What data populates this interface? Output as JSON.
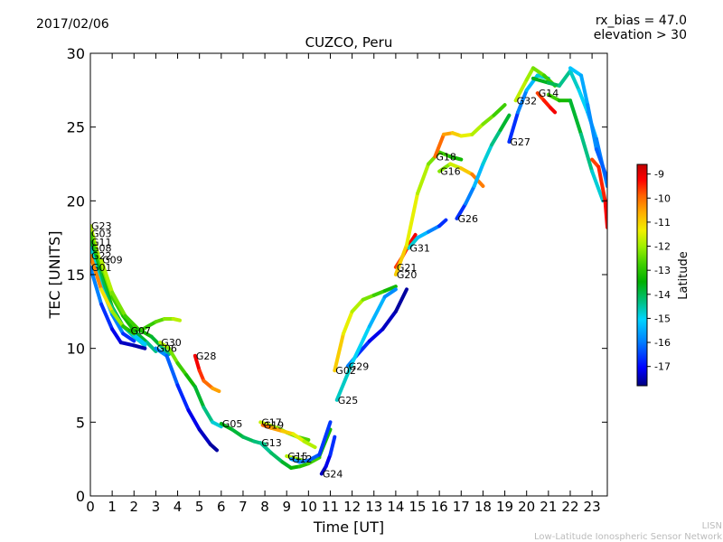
{
  "header": {
    "date": "2017/02/06",
    "title": "CUZCO, Peru",
    "rx_bias": "rx_bias = 47.0",
    "elevation": "elevation > 30"
  },
  "footer": {
    "line1": "LISN",
    "line2": "Low-Latitude Ionospheric Sensor Network"
  },
  "colorbar": {
    "label": "Latitude",
    "ticks": [
      "-9",
      "-10",
      "-11",
      "-12",
      "-13",
      "-14",
      "-15",
      "-16",
      "-17"
    ],
    "colors": [
      "#00007f",
      "#0000ff",
      "#0080ff",
      "#00d4ff",
      "#00c080",
      "#00b000",
      "#40d000",
      "#a0f000",
      "#f0f000",
      "#ffb000",
      "#ff6000",
      "#ff0000",
      "#c00000"
    ]
  },
  "chart_data": {
    "type": "line",
    "title": "CUZCO, Peru",
    "xlabel": "Time [UT]",
    "ylabel": "TEC [UNITS]",
    "xlim": [
      0,
      23.7
    ],
    "ylim": [
      0,
      30
    ],
    "xticks": [
      "0",
      "1",
      "2",
      "3",
      "4",
      "5",
      "6",
      "7",
      "8",
      "9",
      "10",
      "11",
      "12",
      "13",
      "14",
      "15",
      "16",
      "17",
      "18",
      "19",
      "20",
      "21",
      "22",
      "23"
    ],
    "yticks": [
      "0",
      "5",
      "10",
      "15",
      "20",
      "25",
      "30"
    ],
    "color_by": "Latitude",
    "series": [
      {
        "name": "G23",
        "points": [
          [
            0.0,
            18.3
          ],
          [
            0.5,
            15.5
          ],
          [
            1.0,
            13.5
          ],
          [
            1.5,
            12.2
          ],
          [
            2.0,
            11.2
          ],
          [
            2.6,
            10.4
          ],
          [
            3.0,
            9.8
          ]
        ],
        "lat": [
          -12,
          -12.5,
          -13,
          -13.5,
          -14,
          -14.5,
          -15
        ]
      },
      {
        "name": "G03",
        "points": [
          [
            0.0,
            17.8
          ],
          [
            0.5,
            15.0
          ],
          [
            1.0,
            12.8
          ],
          [
            1.5,
            11.5
          ],
          [
            2.0,
            10.8
          ],
          [
            2.5,
            10.2
          ]
        ],
        "lat": [
          -13,
          -13.5,
          -14,
          -14.5,
          -15,
          -15.5
        ]
      },
      {
        "name": "G11",
        "points": [
          [
            0.0,
            17.2
          ],
          [
            0.4,
            15.2
          ],
          [
            0.9,
            13.0
          ],
          [
            1.4,
            11.6
          ],
          [
            2.0,
            10.9
          ],
          [
            2.5,
            10.3
          ]
        ],
        "lat": [
          -14,
          -14.3,
          -14.6,
          -15,
          -15.4,
          -15.8
        ]
      },
      {
        "name": "G08",
        "points": [
          [
            0.0,
            16.8
          ],
          [
            0.5,
            14.2
          ],
          [
            1.0,
            12.3
          ],
          [
            1.5,
            11.0
          ],
          [
            2.0,
            10.5
          ]
        ],
        "lat": [
          -15,
          -15.5,
          -16,
          -16.5,
          -17
        ]
      },
      {
        "name": "G09",
        "points": [
          [
            0.5,
            16.0
          ],
          [
            1.0,
            13.8
          ],
          [
            1.6,
            12.2
          ],
          [
            2.2,
            11.3
          ],
          [
            2.8,
            10.8
          ],
          [
            3.2,
            10.2
          ],
          [
            3.6,
            9.6
          ]
        ],
        "lat": [
          -12,
          -12.5,
          -13,
          -13.5,
          -14,
          -14.5,
          -15
        ]
      },
      {
        "name": "G22",
        "points": [
          [
            0.0,
            16.3
          ],
          [
            0.5,
            14.0
          ],
          [
            1.0,
            12.5
          ],
          [
            1.5,
            11.5
          ],
          [
            2.0,
            11.0
          ]
        ],
        "lat": [
          -10,
          -11,
          -12,
          -13,
          -14
        ]
      },
      {
        "name": "G01",
        "points": [
          [
            0.0,
            15.5
          ],
          [
            0.5,
            13.0
          ],
          [
            1.0,
            11.3
          ],
          [
            1.4,
            10.4
          ],
          [
            2.0,
            10.2
          ],
          [
            2.5,
            10.0
          ]
        ],
        "lat": [
          -16,
          -16.5,
          -17,
          -17.3,
          -17.5,
          -17.6
        ]
      },
      {
        "name": "G07",
        "points": [
          [
            1.8,
            11.2
          ],
          [
            2.4,
            11.3
          ],
          [
            3.0,
            11.8
          ],
          [
            3.4,
            12.0
          ],
          [
            3.8,
            12.0
          ],
          [
            4.1,
            11.9
          ]
        ],
        "lat": [
          -14,
          -13.5,
          -13.2,
          -12.8,
          -12.4,
          -12
        ]
      },
      {
        "name": "G30",
        "points": [
          [
            3.2,
            10.4
          ],
          [
            3.6,
            10.0
          ],
          [
            4.0,
            9.0
          ],
          [
            4.4,
            8.2
          ],
          [
            4.8,
            7.4
          ],
          [
            5.2,
            6.0
          ],
          [
            5.6,
            5.0
          ],
          [
            6.0,
            4.7
          ]
        ],
        "lat": [
          -12,
          -12.5,
          -13,
          -13.5,
          -14,
          -14.5,
          -15,
          -15.5
        ]
      },
      {
        "name": "G06",
        "points": [
          [
            3.0,
            10.0
          ],
          [
            3.5,
            9.5
          ],
          [
            4.0,
            7.5
          ],
          [
            4.5,
            5.8
          ],
          [
            5.0,
            4.5
          ],
          [
            5.5,
            3.5
          ],
          [
            5.8,
            3.1
          ]
        ],
        "lat": [
          -16,
          -16.3,
          -16.6,
          -17,
          -17.3,
          -17.5,
          -17.7
        ]
      },
      {
        "name": "G28",
        "points": [
          [
            4.8,
            9.5
          ],
          [
            5.0,
            8.5
          ],
          [
            5.2,
            7.8
          ],
          [
            5.6,
            7.3
          ],
          [
            5.9,
            7.1
          ]
        ],
        "lat": [
          -9,
          -9.5,
          -10,
          -10.5,
          -11
        ]
      },
      {
        "name": "G05",
        "points": [
          [
            6.0,
            4.9
          ],
          [
            6.5,
            4.5
          ],
          [
            7.0,
            4.0
          ],
          [
            7.5,
            3.7
          ],
          [
            8.0,
            3.5
          ]
        ],
        "lat": [
          -14,
          -14.2,
          -14.4,
          -14.6,
          -14.8
        ]
      },
      {
        "name": "G17",
        "points": [
          [
            7.8,
            5.0
          ],
          [
            8.2,
            4.8
          ],
          [
            8.6,
            4.6
          ],
          [
            9.0,
            4.3
          ],
          [
            9.5,
            4.0
          ],
          [
            10.0,
            3.8
          ]
        ],
        "lat": [
          -12,
          -12.2,
          -12.5,
          -12.8,
          -13,
          -13.2
        ]
      },
      {
        "name": "G19",
        "points": [
          [
            7.9,
            4.8
          ],
          [
            8.3,
            4.6
          ],
          [
            8.8,
            4.4
          ],
          [
            9.3,
            4.2
          ],
          [
            9.8,
            3.7
          ],
          [
            10.3,
            3.3
          ]
        ],
        "lat": [
          -10,
          -10.5,
          -11,
          -11.5,
          -12,
          -12.5
        ]
      },
      {
        "name": "G13",
        "points": [
          [
            7.8,
            3.6
          ],
          [
            8.3,
            2.9
          ],
          [
            8.8,
            2.3
          ],
          [
            9.2,
            1.9
          ],
          [
            9.6,
            2.0
          ],
          [
            10.0,
            2.2
          ],
          [
            10.5,
            2.6
          ]
        ],
        "lat": [
          -15,
          -14.7,
          -14.4,
          -14,
          -13.7,
          -13.4,
          -13
        ]
      },
      {
        "name": "G15",
        "points": [
          [
            9.0,
            2.7
          ],
          [
            9.5,
            2.5
          ],
          [
            10.0,
            2.3
          ],
          [
            10.5,
            2.7
          ],
          [
            11.0,
            4.5
          ]
        ],
        "lat": [
          -12,
          -12.5,
          -13,
          -13.5,
          -14
        ]
      },
      {
        "name": "G12",
        "points": [
          [
            9.2,
            2.5
          ],
          [
            9.6,
            2.3
          ],
          [
            10.0,
            2.4
          ],
          [
            10.5,
            2.8
          ],
          [
            11.0,
            5.0
          ]
        ],
        "lat": [
          -16,
          -16.2,
          -16.4,
          -16.6,
          -16.8
        ]
      },
      {
        "name": "G24",
        "points": [
          [
            10.6,
            1.5
          ],
          [
            10.8,
            2.0
          ],
          [
            11.0,
            2.8
          ],
          [
            11.2,
            4.0
          ]
        ],
        "lat": [
          -17.5,
          -17.3,
          -17,
          -16.5
        ]
      },
      {
        "name": "G02",
        "points": [
          [
            11.2,
            8.5
          ],
          [
            11.6,
            11.0
          ],
          [
            12.0,
            12.5
          ],
          [
            12.5,
            13.3
          ],
          [
            13.0,
            13.6
          ],
          [
            13.5,
            13.9
          ],
          [
            14.0,
            14.2
          ]
        ],
        "lat": [
          -11,
          -11.5,
          -12,
          -12.5,
          -13,
          -13.5,
          -14
        ]
      },
      {
        "name": "G29",
        "points": [
          [
            11.8,
            8.8
          ],
          [
            12.2,
            9.5
          ],
          [
            12.8,
            10.5
          ],
          [
            13.4,
            11.3
          ],
          [
            14.0,
            12.5
          ],
          [
            14.5,
            14.0
          ]
        ],
        "lat": [
          -16,
          -16.5,
          -17,
          -17.3,
          -17.5,
          -17.7
        ]
      },
      {
        "name": "G25",
        "points": [
          [
            11.3,
            6.5
          ],
          [
            12.0,
            9.0
          ],
          [
            12.8,
            11.5
          ],
          [
            13.5,
            13.5
          ],
          [
            14.0,
            14.0
          ]
        ],
        "lat": [
          -15,
          -15.3,
          -15.6,
          -16,
          -16.3
        ]
      },
      {
        "name": "G21",
        "points": [
          [
            14.0,
            15.5
          ],
          [
            14.3,
            16.2
          ],
          [
            14.6,
            17.0
          ],
          [
            14.9,
            17.7
          ]
        ],
        "lat": [
          -10,
          -9.7,
          -9.4,
          -9.1
        ]
      },
      {
        "name": "G31",
        "points": [
          [
            14.6,
            16.8
          ],
          [
            15.0,
            17.5
          ],
          [
            15.5,
            17.9
          ],
          [
            16.0,
            18.3
          ],
          [
            16.3,
            18.7
          ]
        ],
        "lat": [
          -15,
          -15.5,
          -16,
          -16.5,
          -17
        ]
      },
      {
        "name": "G20",
        "points": [
          [
            14.0,
            15.0
          ],
          [
            14.5,
            17.0
          ],
          [
            15.0,
            20.5
          ],
          [
            15.5,
            22.5
          ],
          [
            16.0,
            23.3
          ],
          [
            16.5,
            23.0
          ],
          [
            17.0,
            22.8
          ]
        ],
        "lat": [
          -11,
          -11.5,
          -12,
          -12.5,
          -13,
          -13.5,
          -14
        ]
      },
      {
        "name": "G18",
        "points": [
          [
            15.8,
            23.0
          ],
          [
            16.2,
            24.5
          ],
          [
            16.6,
            24.6
          ],
          [
            17.0,
            24.4
          ],
          [
            17.5,
            24.5
          ],
          [
            18.0,
            25.2
          ],
          [
            18.5,
            25.8
          ],
          [
            19.0,
            26.5
          ]
        ],
        "lat": [
          -10,
          -10.5,
          -11,
          -11.5,
          -12,
          -12.5,
          -13,
          -13.5
        ]
      },
      {
        "name": "G16",
        "points": [
          [
            16.0,
            22.0
          ],
          [
            16.5,
            22.5
          ],
          [
            17.0,
            22.2
          ],
          [
            17.5,
            21.8
          ],
          [
            18.0,
            21.0
          ]
        ],
        "lat": [
          -13,
          -12.3,
          -11.6,
          -10.8,
          -10
        ]
      },
      {
        "name": "G26",
        "points": [
          [
            16.8,
            18.8
          ],
          [
            17.2,
            19.8
          ],
          [
            17.6,
            21.0
          ],
          [
            18.0,
            22.5
          ],
          [
            18.4,
            23.8
          ],
          [
            18.8,
            24.8
          ],
          [
            19.2,
            25.8
          ]
        ],
        "lat": [
          -17,
          -16.5,
          -16,
          -15.5,
          -15,
          -14.5,
          -14
        ]
      },
      {
        "name": "G27",
        "points": [
          [
            19.2,
            24.0
          ],
          [
            19.6,
            26.0
          ],
          [
            20.0,
            27.5
          ],
          [
            20.5,
            28.5
          ],
          [
            21.0,
            28.3
          ]
        ],
        "lat": [
          -17,
          -16.5,
          -16,
          -15.5,
          -15
        ]
      },
      {
        "name": "G32",
        "points": [
          [
            19.5,
            26.8
          ],
          [
            20.0,
            28.2
          ],
          [
            20.3,
            29.0
          ],
          [
            20.8,
            28.5
          ],
          [
            21.3,
            27.8
          ]
        ],
        "lat": [
          -12,
          -12.3,
          -12.6,
          -13,
          -13.5
        ]
      },
      {
        "name": "G14",
        "points": [
          [
            20.5,
            27.3
          ],
          [
            20.8,
            26.8
          ],
          [
            21.1,
            26.3
          ],
          [
            21.3,
            26.0
          ]
        ],
        "lat": [
          -10,
          -9.7,
          -9.4,
          -9.1
        ]
      },
      {
        "name": "",
        "points": [
          [
            20.3,
            28.3
          ],
          [
            21.0,
            28.0
          ],
          [
            21.5,
            27.8
          ],
          [
            22.0,
            28.8
          ],
          [
            22.4,
            27.5
          ],
          [
            22.8,
            26.0
          ],
          [
            23.2,
            24.2
          ],
          [
            23.7,
            21.0
          ]
        ],
        "lat": [
          -14,
          -14.3,
          -14.6,
          -15,
          -15.3,
          -15.6,
          -16,
          -16.5
        ]
      },
      {
        "name": "",
        "points": [
          [
            21.0,
            27.2
          ],
          [
            21.5,
            26.8
          ],
          [
            22.0,
            26.8
          ],
          [
            22.5,
            24.5
          ],
          [
            23.0,
            22.0
          ],
          [
            23.5,
            20.0
          ]
        ],
        "lat": [
          -13,
          -13.5,
          -14,
          -14.5,
          -15,
          -15.5
        ]
      },
      {
        "name": "",
        "points": [
          [
            22.0,
            29.0
          ],
          [
            22.5,
            28.5
          ],
          [
            22.8,
            26.5
          ],
          [
            23.2,
            23.5
          ],
          [
            23.7,
            21.5
          ]
        ],
        "lat": [
          -15.5,
          -15.8,
          -16,
          -16.3,
          -16.6
        ]
      },
      {
        "name": "",
        "points": [
          [
            23.0,
            22.8
          ],
          [
            23.3,
            22.3
          ],
          [
            23.6,
            20.0
          ],
          [
            23.7,
            18.2
          ]
        ],
        "lat": [
          -10,
          -9.8,
          -9.5,
          -9.2
        ]
      }
    ]
  }
}
